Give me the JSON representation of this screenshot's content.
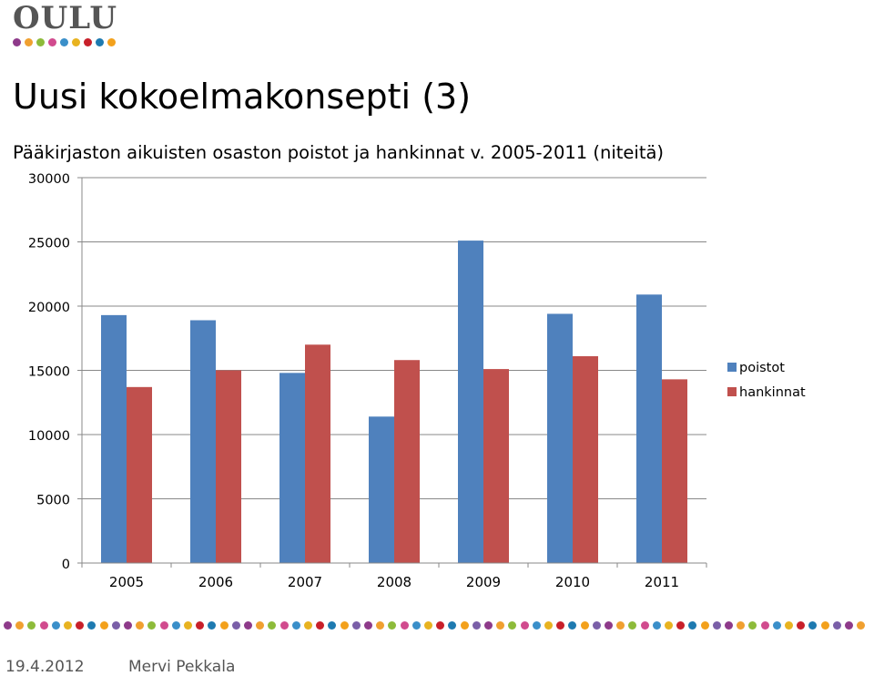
{
  "logo": {
    "text": "OULU",
    "dot_colors": [
      "#8e3a8a",
      "#f0a030",
      "#8dbb3a",
      "#d14b8e",
      "#3a8fc9",
      "#e8b320",
      "#c8202a",
      "#1e7ab0",
      "#f3a11c"
    ]
  },
  "slide": {
    "title": "Uusi kokoelmakonsepti (3)",
    "subtitle": "Pääkirjaston aikuisten osaston poistot ja hankinnat v. 2005-2011 (niteitä)"
  },
  "chart_data": {
    "type": "bar",
    "title": "",
    "xlabel": "",
    "ylabel": "",
    "categories": [
      "2005",
      "2006",
      "2007",
      "2008",
      "2009",
      "2010",
      "2011"
    ],
    "series": [
      {
        "name": "poistot",
        "color": "#4f81bd",
        "values": [
          19300,
          18900,
          14800,
          11400,
          25100,
          19400,
          20900
        ]
      },
      {
        "name": "hankinnat",
        "color": "#c0504d",
        "values": [
          13700,
          15000,
          17000,
          15800,
          15100,
          16100,
          14300
        ]
      }
    ],
    "ylim": [
      0,
      30000
    ],
    "yticks": [
      0,
      5000,
      10000,
      15000,
      20000,
      25000,
      30000
    ],
    "grid": true,
    "legend_position": "right"
  },
  "footer": {
    "date": "19.4.2012",
    "author": "Mervi Pekkala",
    "dot_colors": [
      "#8e3a8a",
      "#f0a030",
      "#8dbb3a",
      "#d14b8e",
      "#3a8fc9",
      "#e8b320",
      "#c8202a",
      "#1e7ab0",
      "#f3a11c",
      "#7a5fa8"
    ]
  }
}
